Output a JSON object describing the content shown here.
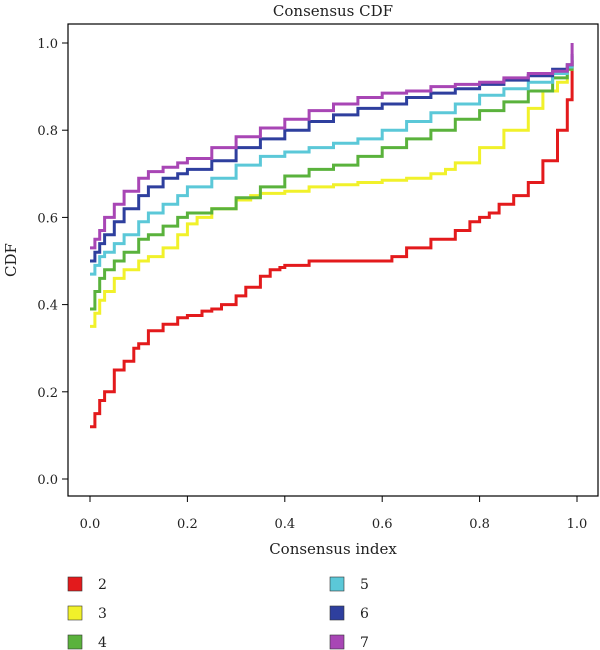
{
  "chart_data": {
    "type": "line",
    "title": "Consensus CDF",
    "xlabel": "Consensus index",
    "ylabel": "CDF",
    "xlim": [
      0.0,
      1.0
    ],
    "ylim": [
      0.0,
      1.0
    ],
    "xticks": [
      "0.0",
      "0.2",
      "0.4",
      "0.6",
      "0.8",
      "1.0"
    ],
    "yticks": [
      "0.0",
      "0.2",
      "0.4",
      "0.6",
      "0.8",
      "1.0"
    ],
    "grid": false,
    "legend": "bottom",
    "series": [
      {
        "name": "2",
        "color": "#e31a1c",
        "x": [
          0.0,
          0.01,
          0.02,
          0.03,
          0.05,
          0.07,
          0.09,
          0.1,
          0.12,
          0.15,
          0.18,
          0.2,
          0.23,
          0.25,
          0.27,
          0.3,
          0.32,
          0.35,
          0.37,
          0.39,
          0.4,
          0.45,
          0.5,
          0.55,
          0.6,
          0.62,
          0.65,
          0.7,
          0.75,
          0.78,
          0.8,
          0.82,
          0.84,
          0.87,
          0.9,
          0.93,
          0.96,
          0.98,
          0.99
        ],
        "y": [
          0.12,
          0.15,
          0.18,
          0.2,
          0.25,
          0.27,
          0.3,
          0.31,
          0.34,
          0.355,
          0.37,
          0.375,
          0.385,
          0.39,
          0.4,
          0.42,
          0.44,
          0.465,
          0.48,
          0.485,
          0.49,
          0.5,
          0.5,
          0.5,
          0.5,
          0.51,
          0.53,
          0.55,
          0.57,
          0.59,
          0.6,
          0.61,
          0.63,
          0.65,
          0.68,
          0.73,
          0.8,
          0.87,
          0.96
        ]
      },
      {
        "name": "3",
        "color": "#f1f12a",
        "x": [
          0.0,
          0.01,
          0.02,
          0.03,
          0.05,
          0.07,
          0.1,
          0.12,
          0.15,
          0.18,
          0.2,
          0.22,
          0.25,
          0.3,
          0.33,
          0.35,
          0.4,
          0.45,
          0.5,
          0.55,
          0.6,
          0.65,
          0.7,
          0.73,
          0.75,
          0.8,
          0.85,
          0.9,
          0.93,
          0.96,
          0.98,
          0.99
        ],
        "y": [
          0.35,
          0.38,
          0.41,
          0.43,
          0.46,
          0.48,
          0.5,
          0.51,
          0.53,
          0.56,
          0.585,
          0.6,
          0.62,
          0.64,
          0.65,
          0.655,
          0.66,
          0.67,
          0.675,
          0.68,
          0.685,
          0.69,
          0.7,
          0.71,
          0.725,
          0.76,
          0.8,
          0.85,
          0.89,
          0.91,
          0.94,
          0.95
        ]
      },
      {
        "name": "4",
        "color": "#5ab23c",
        "x": [
          0.0,
          0.01,
          0.02,
          0.03,
          0.05,
          0.07,
          0.1,
          0.12,
          0.15,
          0.18,
          0.2,
          0.25,
          0.3,
          0.35,
          0.4,
          0.45,
          0.5,
          0.55,
          0.6,
          0.65,
          0.7,
          0.75,
          0.8,
          0.85,
          0.9,
          0.95,
          0.98,
          0.99
        ],
        "y": [
          0.39,
          0.43,
          0.46,
          0.48,
          0.5,
          0.52,
          0.55,
          0.56,
          0.58,
          0.6,
          0.61,
          0.62,
          0.645,
          0.67,
          0.695,
          0.71,
          0.72,
          0.74,
          0.76,
          0.78,
          0.8,
          0.825,
          0.845,
          0.865,
          0.89,
          0.92,
          0.94,
          0.96
        ]
      },
      {
        "name": "5",
        "color": "#5bc8d8",
        "x": [
          0.0,
          0.01,
          0.02,
          0.03,
          0.05,
          0.07,
          0.1,
          0.12,
          0.15,
          0.18,
          0.2,
          0.25,
          0.3,
          0.35,
          0.4,
          0.45,
          0.5,
          0.55,
          0.6,
          0.65,
          0.7,
          0.75,
          0.8,
          0.85,
          0.9,
          0.95,
          0.98,
          0.99
        ],
        "y": [
          0.47,
          0.49,
          0.51,
          0.52,
          0.54,
          0.56,
          0.59,
          0.61,
          0.63,
          0.65,
          0.67,
          0.69,
          0.72,
          0.74,
          0.75,
          0.76,
          0.77,
          0.78,
          0.8,
          0.82,
          0.84,
          0.86,
          0.88,
          0.895,
          0.91,
          0.93,
          0.945,
          0.97
        ]
      },
      {
        "name": "6",
        "color": "#2e3f9e",
        "x": [
          0.0,
          0.01,
          0.02,
          0.03,
          0.05,
          0.07,
          0.1,
          0.12,
          0.15,
          0.18,
          0.2,
          0.25,
          0.3,
          0.35,
          0.4,
          0.45,
          0.5,
          0.55,
          0.6,
          0.65,
          0.7,
          0.75,
          0.8,
          0.85,
          0.9,
          0.95,
          0.98,
          0.99
        ],
        "y": [
          0.5,
          0.52,
          0.54,
          0.56,
          0.59,
          0.62,
          0.65,
          0.67,
          0.69,
          0.7,
          0.71,
          0.73,
          0.76,
          0.78,
          0.8,
          0.82,
          0.835,
          0.85,
          0.86,
          0.875,
          0.885,
          0.895,
          0.905,
          0.915,
          0.925,
          0.94,
          0.95,
          0.975
        ]
      },
      {
        "name": "7",
        "color": "#a846b5",
        "x": [
          0.0,
          0.01,
          0.02,
          0.03,
          0.05,
          0.07,
          0.1,
          0.12,
          0.15,
          0.18,
          0.2,
          0.25,
          0.3,
          0.35,
          0.4,
          0.45,
          0.5,
          0.55,
          0.6,
          0.65,
          0.7,
          0.75,
          0.8,
          0.85,
          0.9,
          0.95,
          0.98,
          0.99
        ],
        "y": [
          0.53,
          0.55,
          0.57,
          0.6,
          0.63,
          0.66,
          0.69,
          0.705,
          0.715,
          0.725,
          0.735,
          0.76,
          0.785,
          0.805,
          0.825,
          0.845,
          0.86,
          0.875,
          0.885,
          0.89,
          0.9,
          0.905,
          0.91,
          0.92,
          0.93,
          0.935,
          0.95,
          1.0
        ]
      }
    ]
  }
}
